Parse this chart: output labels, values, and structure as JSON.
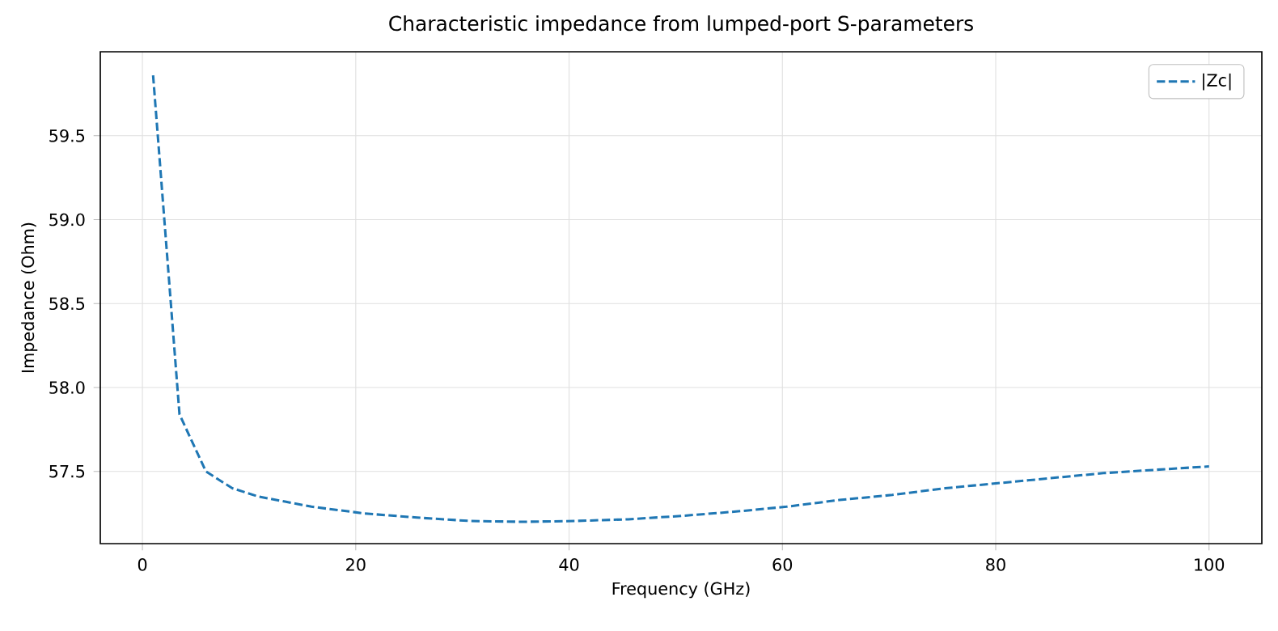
{
  "chart_data": {
    "type": "line",
    "title": "Characteristic impedance from lumped-port S-parameters",
    "xlabel": "Frequency (GHz)",
    "ylabel": "Impedance (Ohm)",
    "x": [
      1,
      3.475,
      5.95,
      8.425,
      10.9,
      13.375,
      15.85,
      20.8,
      25.75,
      30.7,
      35.65,
      40.6,
      45.55,
      50.5,
      55.45,
      60.4,
      65.35,
      70.3,
      75.25,
      80.2,
      85.15,
      90.1,
      95.05,
      100
    ],
    "series": [
      {
        "name": "|Zc|",
        "color": "#1f77b4",
        "line_style": "dashed",
        "values": [
          59.86,
          57.84,
          57.5,
          57.4,
          57.35,
          57.32,
          57.29,
          57.25,
          57.225,
          57.205,
          57.2,
          57.205,
          57.215,
          57.235,
          57.26,
          57.29,
          57.33,
          57.36,
          57.4,
          57.43,
          57.46,
          57.49,
          57.51,
          57.53
        ]
      }
    ],
    "xlim": [
      -3.95,
      104.95
    ],
    "ylim": [
      57.07,
      60.0
    ],
    "xticks": [
      0,
      20,
      40,
      60,
      80,
      100
    ],
    "yticks": [
      57.5,
      {
        "value": 58,
        "label": "58.0"
      },
      58.5,
      {
        "value": 59,
        "label": "59.0"
      },
      59.5
    ],
    "grid": true,
    "legend": "top right",
    "marker": "none"
  }
}
